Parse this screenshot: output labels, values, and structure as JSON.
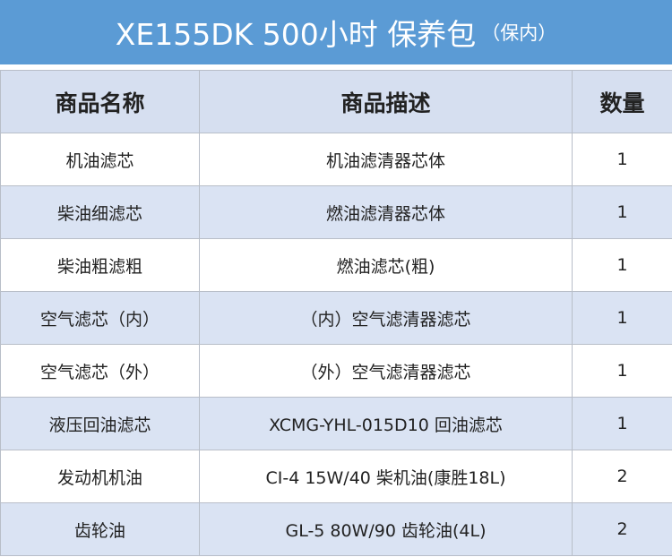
{
  "title": {
    "main": "XE155DK 500小时 保养包",
    "note": "（保内）"
  },
  "table": {
    "header": [
      "商品名称",
      "商品描述",
      "数量"
    ],
    "rows": [
      [
        "机油滤芯",
        "机油滤清器芯体",
        1
      ],
      [
        "柴油细滤芯",
        "燃油滤清器芯体",
        1
      ],
      [
        "柴油粗滤粗",
        "燃油滤芯(粗)",
        1
      ],
      [
        "空气滤芯（内）",
        "（内）空气滤清器滤芯",
        1
      ],
      [
        "空气滤芯（外）",
        "（外）空气滤清器滤芯",
        1
      ],
      [
        "液压回油滤芯",
        "XCMG-YHL-015D10 回油滤芯",
        1
      ],
      [
        "发动机机油",
        "CI-4 15W/40 柴机油(康胜18L)",
        2
      ],
      [
        "齿轮油",
        "GL-5 80W/90 齿轮油(4L)",
        2
      ]
    ]
  }
}
